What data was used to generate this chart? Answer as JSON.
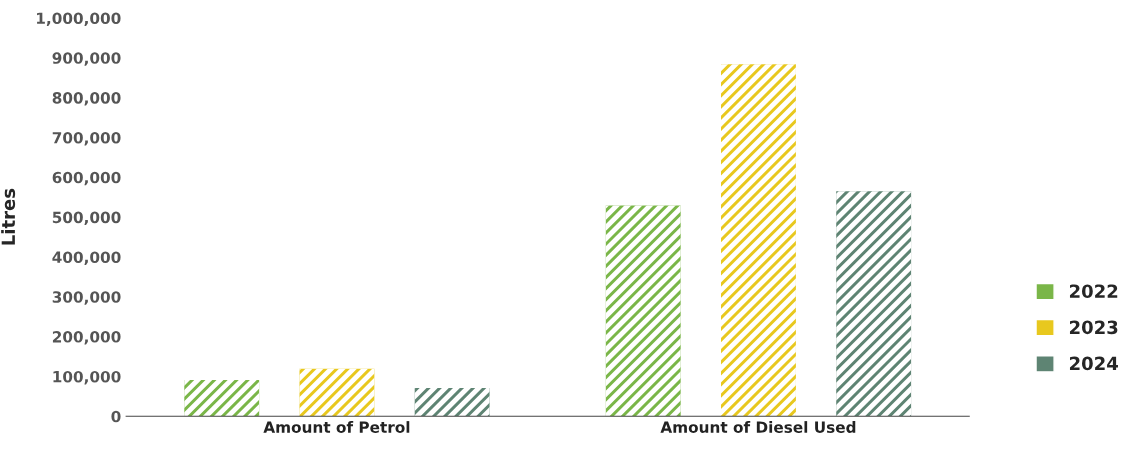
{
  "chart_data": {
    "type": "bar",
    "ylabel": "Litres",
    "categories": [
      "Amount of Petrol",
      "Amount of Diesel Used"
    ],
    "series": [
      {
        "name": "2022",
        "color": "#7ab648",
        "values": [
          91000,
          529000
        ]
      },
      {
        "name": "2023",
        "color": "#e8c81e",
        "values": [
          119000,
          884000
        ]
      },
      {
        "name": "2024",
        "color": "#5e8473",
        "values": [
          71000,
          565000
        ]
      }
    ],
    "ylim": [
      0,
      1000000
    ],
    "yticks": [
      {
        "value": 0,
        "label": "0"
      },
      {
        "value": 100000,
        "label": "100,000"
      },
      {
        "value": 200000,
        "label": "200,000"
      },
      {
        "value": 300000,
        "label": "300,000"
      },
      {
        "value": 400000,
        "label": "400,000"
      },
      {
        "value": 500000,
        "label": "500,000"
      },
      {
        "value": 600000,
        "label": "600,000"
      },
      {
        "value": 700000,
        "label": "700,000"
      },
      {
        "value": 800000,
        "label": "800,000"
      },
      {
        "value": 900000,
        "label": "900,000"
      },
      {
        "value": 1000000,
        "label": "1,000,000"
      }
    ],
    "grid": false,
    "legend": "right"
  }
}
